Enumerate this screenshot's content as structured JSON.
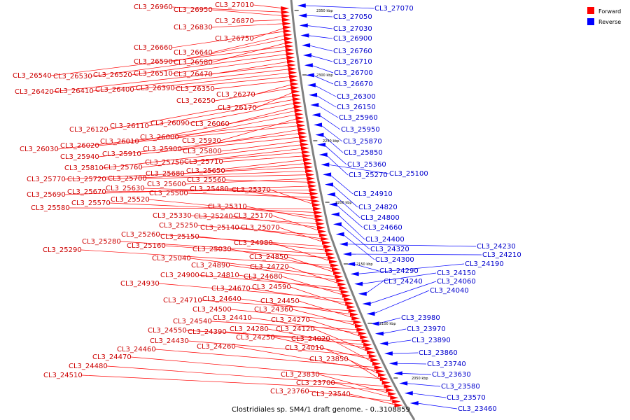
{
  "caption": "Clostridiales sp. SM4/1 draft genome. - 0..3108859",
  "legend": [
    {
      "label": "Forward",
      "color": "#ff0000"
    },
    {
      "label": "Reverse",
      "color": "#0000ff"
    }
  ],
  "colors": {
    "forward": "#ff0000",
    "reverse": "#0000ff",
    "forward_text": "#cc0000",
    "reverse_text": "#0000cc",
    "backbone": "#808080"
  },
  "kbp_marks": [
    "2350 kbp",
    "2300 kbp",
    "2250 kbp",
    "2200 kbp",
    "2150 kbp",
    "2100 kbp",
    "2050 kbp"
  ],
  "forward_genes": [
    "CL3_27010",
    "CL3_26960",
    "CL3_26950",
    "CL3_26870",
    "CL3_26830",
    "CL3_26750",
    "CL3_26660",
    "CL3_26640",
    "CL3_26590",
    "CL3_26580",
    "CL3_26540",
    "CL3_26530",
    "CL3_26520",
    "CL3_26510",
    "CL3_26470",
    "CL3_26420",
    "CL3_26410",
    "CL3_26400",
    "CL3_26390",
    "CL3_26350",
    "CL3_26270",
    "CL3_26250",
    "CL3_26170",
    "CL3_26120",
    "CL3_26110",
    "CL3_26090",
    "CL3_26060",
    "CL3_26010",
    "CL3_26000",
    "CL3_25930",
    "CL3_26030",
    "CL3_26020",
    "CL3_25900",
    "CL3_25940",
    "CL3_25910",
    "CL3_25800",
    "CL3_25810",
    "CL3_25760",
    "CL3_25750",
    "CL3_25710",
    "CL3_25680",
    "CL3_25650",
    "CL3_25770",
    "CL3_25720",
    "CL3_25700",
    "CL3_25600",
    "CL3_25560",
    "CL3_25690",
    "CL3_25670",
    "CL3_25630",
    "CL3_25500",
    "CL3_25480",
    "CL3_25370",
    "CL3_25580",
    "CL3_25570",
    "CL3_25520",
    "CL3_25310",
    "CL3_25330",
    "CL3_25240",
    "CL3_25170",
    "CL3_25250",
    "CL3_25140",
    "CL3_25070",
    "CL3_25260",
    "CL3_25150",
    "CL3_25280",
    "CL3_25160",
    "CL3_24980",
    "CL3_25290",
    "CL3_25030",
    "CL3_24850",
    "CL3_25040",
    "CL3_24890",
    "CL3_24720",
    "CL3_24900",
    "CL3_24810",
    "CL3_24680",
    "CL3_24930",
    "CL3_24670",
    "CL3_24590",
    "CL3_24710",
    "CL3_24640",
    "CL3_24450",
    "CL3_24500",
    "CL3_24360",
    "CL3_24540",
    "CL3_24410",
    "CL3_24270",
    "CL3_24550",
    "CL3_24390",
    "CL3_24280",
    "CL3_24120",
    "CL3_24430",
    "CL3_24250",
    "CL3_24020",
    "CL3_24460",
    "CL3_24260",
    "CL3_24010",
    "CL3_24470",
    "CL3_23850",
    "CL3_24480",
    "CL3_24510",
    "CL3_23830",
    "CL3_23700",
    "CL3_23760",
    "CL3_23540"
  ],
  "reverse_genes": [
    "CL3_27070",
    "CL3_27050",
    "CL3_27030",
    "CL3_26900",
    "CL3_26760",
    "CL3_26710",
    "CL3_26700",
    "CL3_26670",
    "CL3_26300",
    "CL3_26150",
    "CL3_25960",
    "CL3_25950",
    "CL3_25870",
    "CL3_25850",
    "CL3_25360",
    "CL3_25270",
    "CL3_25100",
    "CL3_24910",
    "CL3_24820",
    "CL3_24800",
    "CL3_24660",
    "CL3_24400",
    "CL3_24320",
    "CL3_24300",
    "CL3_24230",
    "CL3_24210",
    "CL3_24290",
    "CL3_24190",
    "CL3_24150",
    "CL3_24240",
    "CL3_24060",
    "CL3_24040",
    "CL3_23980",
    "CL3_23970",
    "CL3_23890",
    "CL3_23860",
    "CL3_23740",
    "CL3_23630",
    "CL3_23580",
    "CL3_23570",
    "CL3_23460"
  ]
}
